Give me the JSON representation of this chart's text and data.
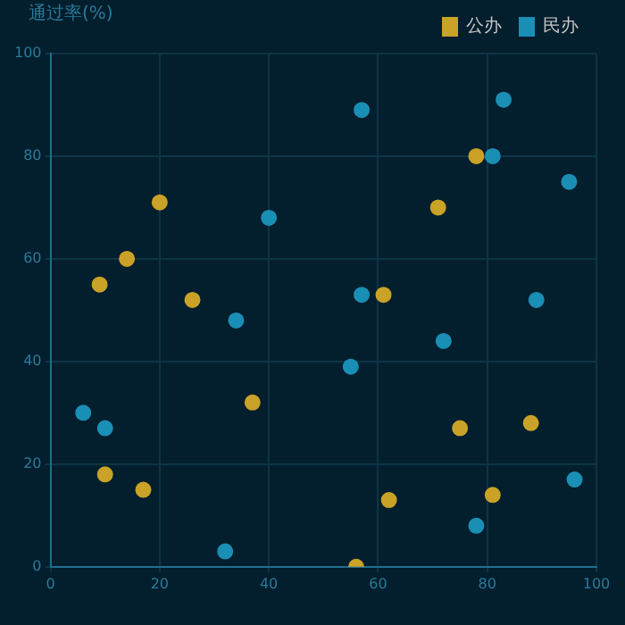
{
  "chart_data": {
    "type": "scatter",
    "ylabel": "通过率(%)",
    "legend": "top right",
    "grid": true,
    "marker": "circle",
    "xlim": [
      0,
      100
    ],
    "ylim": [
      0,
      100
    ],
    "xticks": [
      0,
      20,
      40,
      60,
      80,
      100
    ],
    "yticks": [
      0,
      20,
      40,
      60,
      80,
      100
    ],
    "series": [
      {
        "name": "公办",
        "color": "#c9a227",
        "x": [
          20,
          14,
          9,
          26,
          61,
          37,
          71,
          78,
          10,
          17,
          62,
          81,
          75,
          88,
          56
        ],
        "values": [
          71,
          60,
          55,
          52,
          53,
          32,
          70,
          80,
          18,
          15,
          13,
          14,
          27,
          28,
          0
        ]
      },
      {
        "name": "民办",
        "color": "#1a8fb5",
        "x": [
          57,
          83,
          81,
          95,
          40,
          57,
          34,
          89,
          72,
          55,
          6,
          10,
          96,
          78,
          32
        ],
        "values": [
          89,
          91,
          80,
          75,
          68,
          53,
          48,
          52,
          44,
          39,
          30,
          27,
          17,
          8,
          3
        ]
      }
    ]
  }
}
